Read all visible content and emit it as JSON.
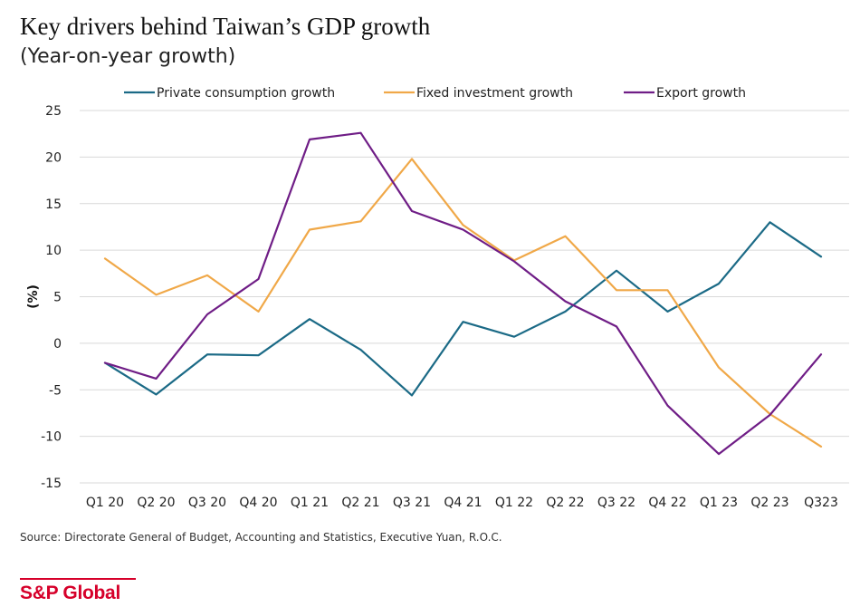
{
  "chart_data": {
    "type": "line",
    "title": "Key drivers behind Taiwan’s GDP growth",
    "subtitle": "(Year-on-year growth)",
    "xlabel": "",
    "ylabel": "(%)",
    "ylim": [
      -15,
      25
    ],
    "yticks": [
      25,
      20,
      15,
      10,
      5,
      0,
      -5,
      -10,
      -15
    ],
    "categories": [
      "Q1 20",
      "Q2 20",
      "Q3 20",
      "Q4 20",
      "Q1 21",
      "Q2 21",
      "Q3 21",
      "Q4 21",
      "Q1 22",
      "Q2 22",
      "Q3 22",
      "Q4 22",
      "Q1 23",
      "Q2 23",
      "Q323"
    ],
    "grid": true,
    "legend_position": "top",
    "series": [
      {
        "name": "Private consumption growth",
        "color": "#1b6a86",
        "values": [
          -2.1,
          -5.5,
          -1.2,
          -1.3,
          2.6,
          -0.7,
          -5.6,
          2.3,
          0.7,
          3.4,
          7.8,
          3.4,
          6.4,
          13.0,
          9.3
        ]
      },
      {
        "name": "Fixed investment growth",
        "color": "#f0a848",
        "values": [
          9.1,
          5.2,
          7.3,
          3.4,
          12.2,
          13.1,
          19.8,
          12.7,
          8.9,
          11.5,
          5.7,
          5.7,
          -2.6,
          -7.6,
          -11.1
        ]
      },
      {
        "name": "Export growth",
        "color": "#6f1d86",
        "values": [
          -2.1,
          -3.8,
          3.1,
          6.9,
          21.9,
          22.6,
          14.2,
          12.2,
          8.8,
          4.5,
          1.8,
          -6.7,
          -11.9,
          -7.7,
          -1.2
        ]
      }
    ]
  },
  "source": "Source: Directorate General of Budget, Accounting and Statistics, Executive Yuan, R.O.C.",
  "brand": "S&P Global"
}
